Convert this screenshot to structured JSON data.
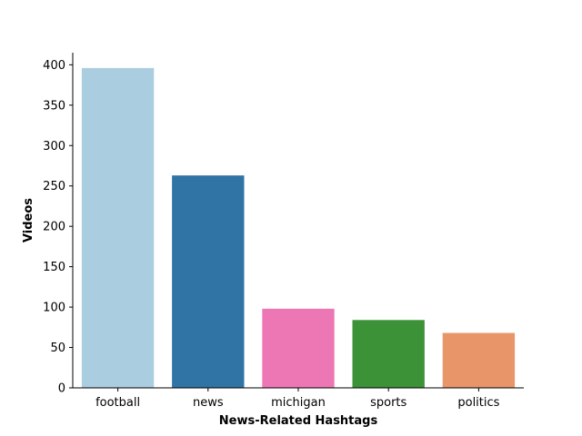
{
  "chart_data": {
    "type": "bar",
    "title": "",
    "xlabel": "News-Related Hashtags",
    "ylabel": "Videos",
    "categories": [
      "football",
      "news",
      "michigan",
      "sports",
      "politics"
    ],
    "values": [
      396,
      263,
      98,
      84,
      68
    ],
    "colors": [
      "#abcde0",
      "#2f74a5",
      "#ed77b4",
      "#3c9236",
      "#e8956a"
    ],
    "ylim": [
      0,
      415
    ],
    "yticks": [
      0,
      50,
      100,
      150,
      200,
      250,
      300,
      350,
      400
    ],
    "grid": false,
    "legend": "none"
  }
}
